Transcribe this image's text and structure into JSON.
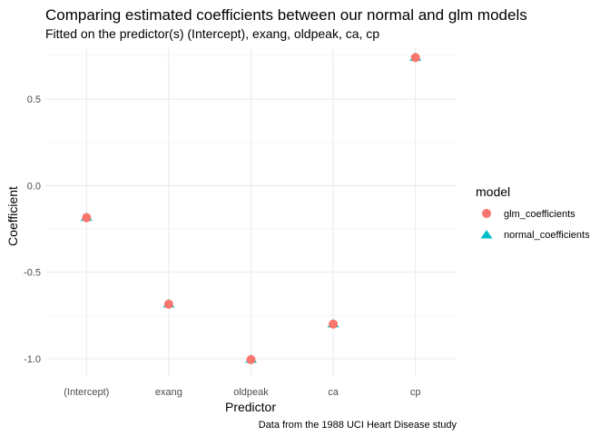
{
  "chart_data": {
    "type": "scatter",
    "title": "Comparing estimated coefficients between our normal and glm models",
    "subtitle": "Fitted on the predictor(s) (Intercept), exang, oldpeak, ca, cp",
    "caption": "Data from the 1988 UCI Heart Disease study",
    "xlabel": "Predictor",
    "ylabel": "Coefficient",
    "categories": [
      "(Intercept)",
      "exang",
      "oldpeak",
      "ca",
      "cp"
    ],
    "yticks": [
      0.5,
      0.0,
      -0.5,
      -1.0
    ],
    "ytick_labels": [
      "0.5",
      "0.0",
      "-0.5",
      "-1.0"
    ],
    "ylim": [
      -1.1,
      0.8
    ],
    "grid": true,
    "legend": {
      "title": "model",
      "position": "right"
    },
    "series": [
      {
        "name": "glm_coefficients",
        "marker": "circle",
        "color": "#F8766D",
        "values": [
          -0.185,
          -0.685,
          -1.005,
          -0.8,
          0.74
        ]
      },
      {
        "name": "normal_coefficients",
        "marker": "triangle",
        "color": "#00BFC4",
        "values": [
          -0.185,
          -0.685,
          -1.005,
          -0.8,
          0.74
        ]
      }
    ]
  }
}
